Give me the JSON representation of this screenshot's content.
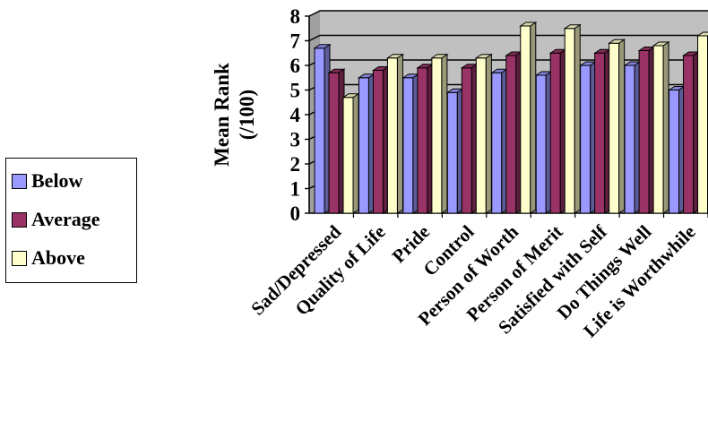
{
  "chart_data": {
    "type": "bar",
    "ylabel": [
      "Mean Rank",
      "(/100)"
    ],
    "xlabel": "",
    "ylim": [
      0,
      8
    ],
    "yticks": [
      "0",
      "1",
      "2",
      "3",
      "4",
      "5",
      "6",
      "7",
      "8"
    ],
    "categories": [
      "Sad/Depressed",
      "Quality of Life",
      "Pride",
      "Control",
      "Person of Worth",
      "Person of Merit",
      "Satisfied with Self",
      "Do Things Well",
      "Life is Worthwhile"
    ],
    "series": [
      {
        "name": "Below",
        "color": "#9999ff",
        "values": [
          6.7,
          5.5,
          5.5,
          4.9,
          5.7,
          5.6,
          6.0,
          6.0,
          5.0
        ]
      },
      {
        "name": "Average",
        "color": "#993366",
        "values": [
          5.7,
          5.8,
          5.9,
          5.9,
          6.4,
          6.5,
          6.5,
          6.6,
          6.4
        ]
      },
      {
        "name": "Above",
        "color": "#ffffcc",
        "values": [
          4.7,
          6.3,
          6.3,
          6.3,
          7.6,
          7.5,
          6.9,
          6.8,
          7.2
        ]
      }
    ],
    "grid": true,
    "legend": "left",
    "plot_background": "#c0c0c0"
  }
}
